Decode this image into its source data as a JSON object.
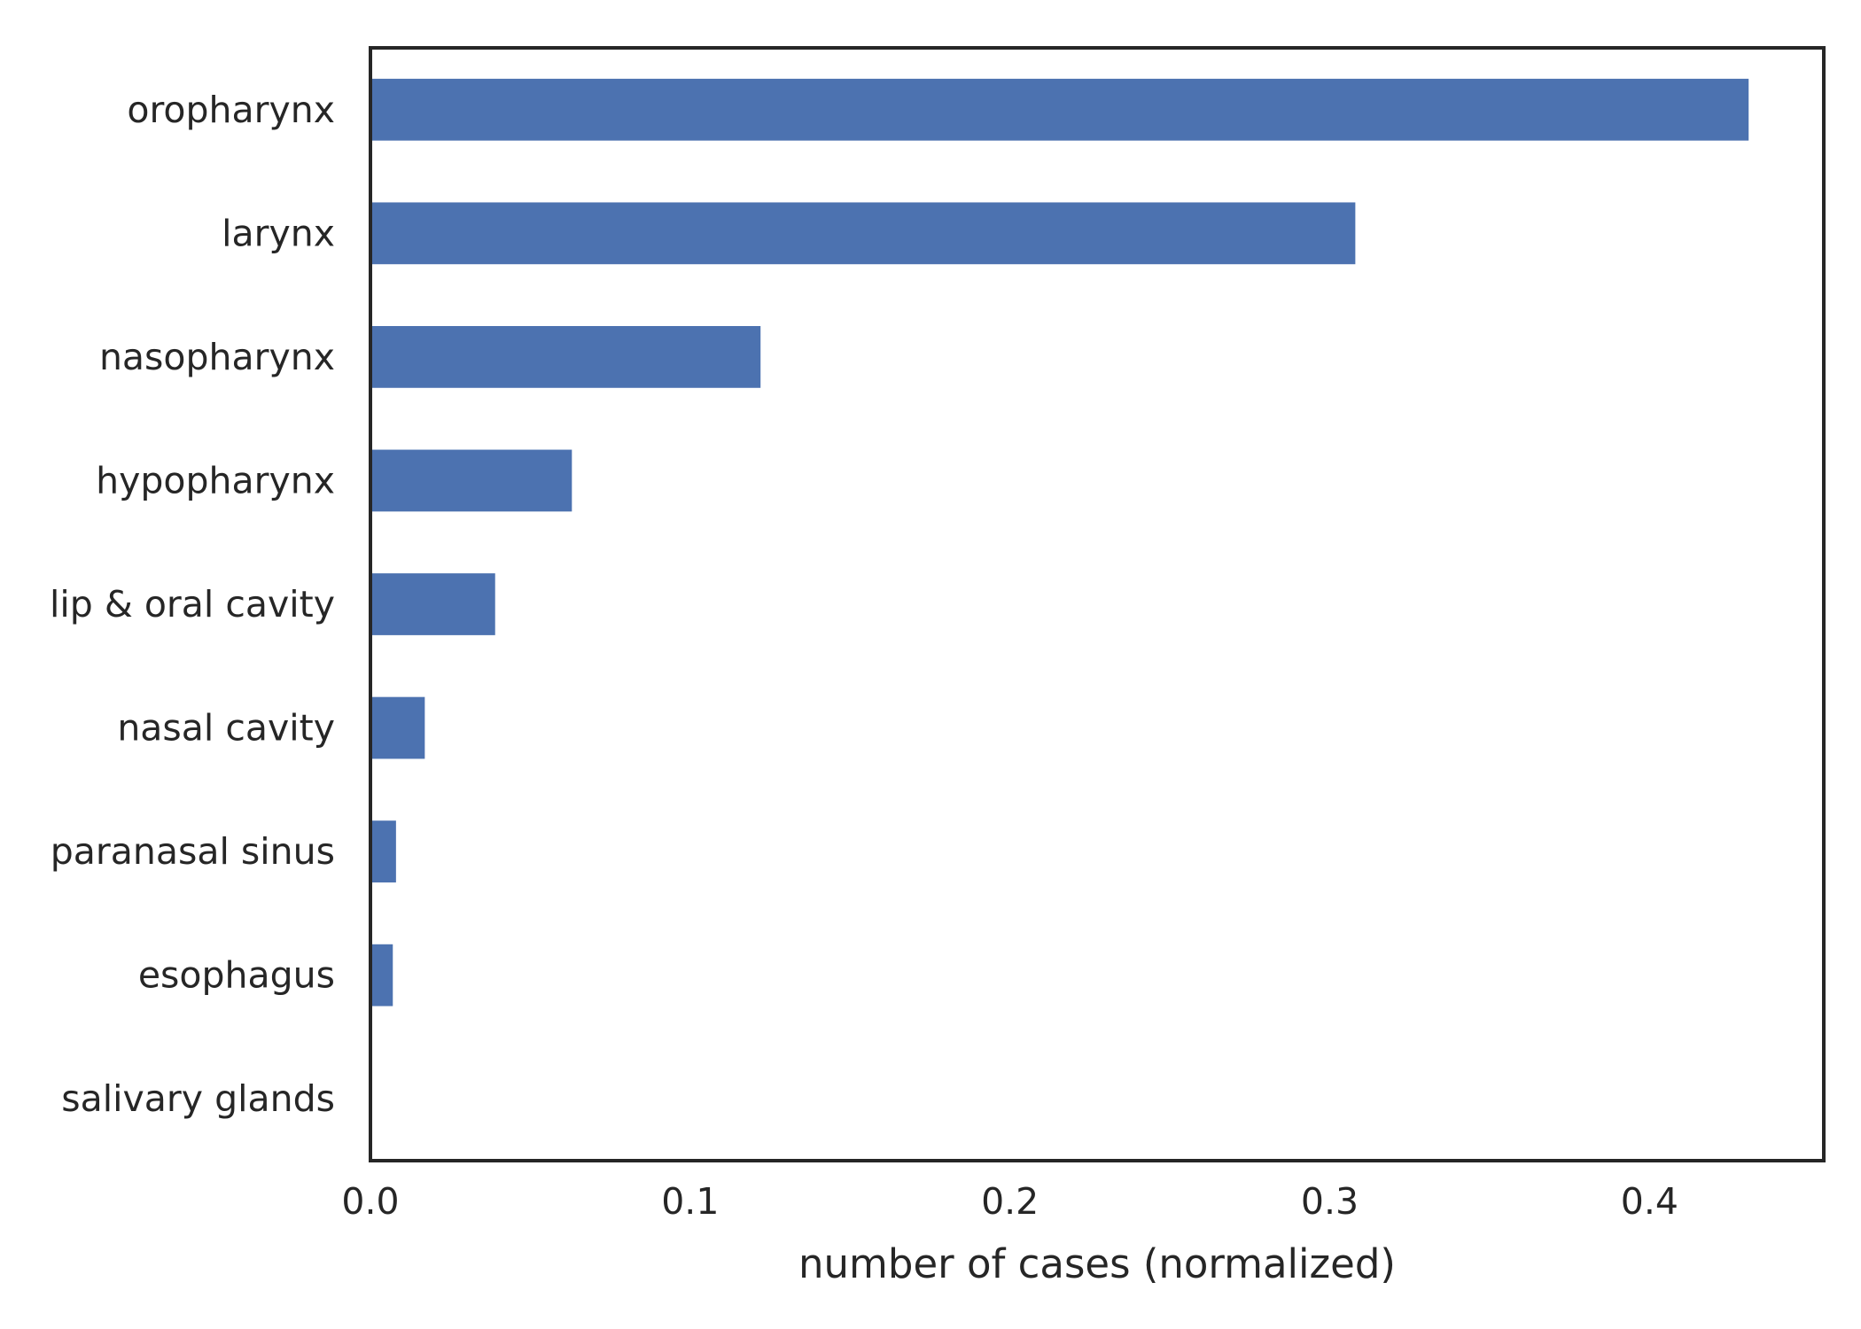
{
  "chart_data": {
    "type": "bar",
    "orientation": "horizontal",
    "title": "",
    "xlabel": "number of cases (normalized)",
    "ylabel": "",
    "xlim": [
      0,
      0.4545
    ],
    "xticks": [
      "0.0",
      "0.1",
      "0.2",
      "0.3",
      "0.4"
    ],
    "grid": false,
    "categories": [
      "oropharynx",
      "larynx",
      "nasopharynx",
      "hypopharynx",
      "lip & oral cavity",
      "nasal cavity",
      "paranasal sinus",
      "esophagus",
      "salivary glands"
    ],
    "values": [
      0.431,
      0.308,
      0.122,
      0.063,
      0.039,
      0.017,
      0.008,
      0.007,
      0.0
    ],
    "bar_color": "#4c72b0",
    "axis_color": "#262626"
  }
}
